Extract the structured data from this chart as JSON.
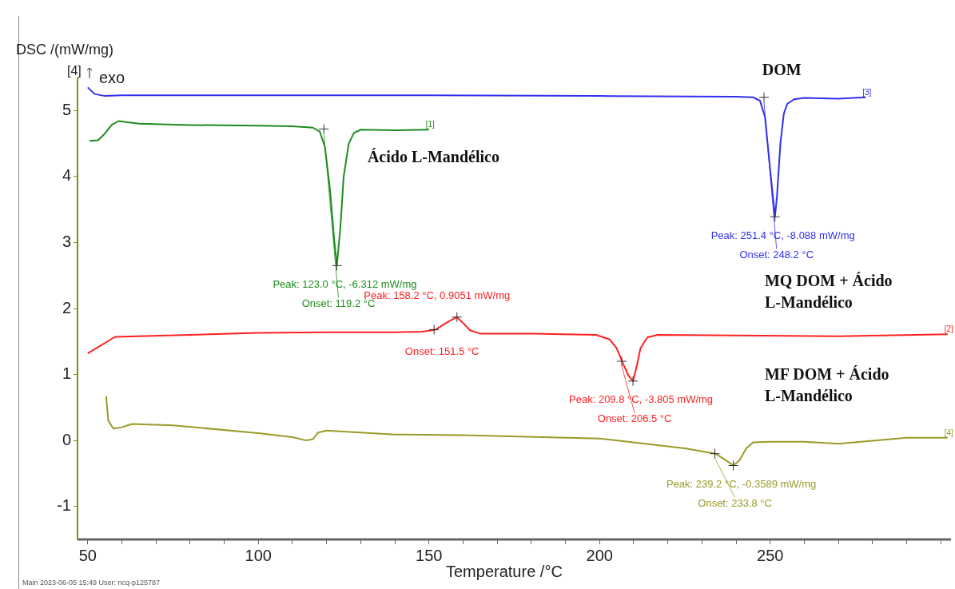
{
  "chart_data": {
    "type": "line",
    "xlabel": "Temperature /°C",
    "ylabel": "DSC /(mW/mg)",
    "xlim": [
      47,
      303
    ],
    "ylim": [
      -1.5,
      5.5
    ],
    "xticks": [
      50,
      {
        "value": 60,
        "label": null
      },
      {
        "value": 70,
        "label": null
      },
      {
        "value": 80,
        "label": null
      },
      {
        "value": 90,
        "label": null
      },
      100,
      {
        "value": 110,
        "label": null
      },
      {
        "value": 120,
        "label": null
      },
      {
        "value": 130,
        "label": null
      },
      {
        "value": 140,
        "label": null
      },
      150,
      {
        "value": 160,
        "label": null
      },
      {
        "value": 170,
        "label": null
      },
      {
        "value": 180,
        "label": null
      },
      {
        "value": 190,
        "label": null
      },
      200,
      {
        "value": 210,
        "label": null
      },
      {
        "value": 220,
        "label": null
      },
      {
        "value": 230,
        "label": null
      },
      {
        "value": 240,
        "label": null
      },
      250,
      {
        "value": 260,
        "label": null
      },
      {
        "value": 270,
        "label": null
      },
      {
        "value": 280,
        "label": null
      },
      {
        "value": 290,
        "label": null
      },
      {
        "value": 300,
        "label": null
      }
    ],
    "yticks": [
      -1,
      0,
      1,
      2,
      3,
      4,
      5
    ],
    "grid": false,
    "legend": false,
    "marker": "none",
    "line_style": "solid",
    "series": [
      {
        "name": "DOM",
        "color": "#3030f0",
        "x": [
          50,
          52,
          55,
          60,
          100,
          150,
          200,
          240,
          245,
          247,
          248.5,
          250,
          251,
          251.4,
          252,
          253,
          254,
          255,
          257,
          260,
          270,
          278
        ],
        "values": [
          5.35,
          5.25,
          5.22,
          5.23,
          5.23,
          5.23,
          5.22,
          5.21,
          5.2,
          5.15,
          4.9,
          4.1,
          3.6,
          3.39,
          3.7,
          4.5,
          4.95,
          5.1,
          5.17,
          5.19,
          5.18,
          5.2
        ]
      },
      {
        "name": "Ácido L-Mandélico",
        "color": "#1e8c1e",
        "x": [
          50.5,
          53,
          55,
          57,
          59,
          65,
          80,
          100,
          110,
          116,
          118,
          119.5,
          121,
          122.3,
          123,
          124,
          125,
          126.5,
          128,
          130,
          140,
          150
        ],
        "values": [
          4.54,
          4.55,
          4.65,
          4.78,
          4.84,
          4.8,
          4.78,
          4.77,
          4.76,
          4.74,
          4.68,
          4.45,
          3.8,
          3.0,
          2.65,
          3.2,
          4.0,
          4.5,
          4.66,
          4.71,
          4.7,
          4.71
        ]
      },
      {
        "name": "MQ DOM + Ácido L-Mandélico",
        "color": "#ff2020",
        "x": [
          50,
          58,
          80,
          100,
          120,
          140,
          148,
          152,
          155,
          158.2,
          160,
          162,
          165,
          180,
          199,
          203,
          205,
          207,
          208.5,
          209.8,
          211,
          212,
          214,
          217,
          240,
          270,
          302
        ],
        "values": [
          1.32,
          1.57,
          1.6,
          1.63,
          1.64,
          1.64,
          1.65,
          1.68,
          1.78,
          1.87,
          1.78,
          1.67,
          1.62,
          1.62,
          1.6,
          1.53,
          1.4,
          1.15,
          0.98,
          0.9,
          1.15,
          1.4,
          1.56,
          1.6,
          1.59,
          1.58,
          1.61
        ]
      },
      {
        "name": "MF DOM + Ácido L-Mandélico",
        "color": "#9a9a28",
        "x": [
          55.4,
          56,
          57.5,
          60,
          63,
          75,
          100,
          110,
          114,
          116,
          117.5,
          120,
          140,
          160,
          200,
          225,
          234,
          237,
          239.2,
          241,
          243,
          245,
          250,
          260,
          270,
          290,
          302
        ],
        "values": [
          0.67,
          0.3,
          0.18,
          0.2,
          0.25,
          0.23,
          0.11,
          0.05,
          0.0,
          0.02,
          0.12,
          0.15,
          0.09,
          0.08,
          0.03,
          -0.12,
          -0.2,
          -0.3,
          -0.38,
          -0.3,
          -0.12,
          -0.03,
          -0.02,
          -0.02,
          -0.05,
          0.04,
          0.04
        ]
      }
    ],
    "annotations": [
      {
        "text": "Peak: 251.4 °C, -8.088 mW/mg",
        "x": 251.4,
        "y": 3.39
      },
      {
        "text": "Onset: 248.2 °C",
        "x": 248.2,
        "y": 5.2
      },
      {
        "text": "Peak: 123.0 °C, -6.312 mW/mg",
        "x": 123,
        "y": 2.65
      },
      {
        "text": "Onset: 119.2 °C",
        "x": 119.2,
        "y": 4.72
      },
      {
        "text": "Peak: 158.2 °C, 0.9051 mW/mg",
        "x": 158.2,
        "y": 1.87
      },
      {
        "text": "Onset: 151.5 °C",
        "x": 151.5,
        "y": 1.68
      },
      {
        "text": "Peak: 209.8 °C, -3.805 mW/mg",
        "x": 209.8,
        "y": 0.9
      },
      {
        "text": "Onset: 206.5 °C",
        "x": 206.5,
        "y": 1.2
      },
      {
        "text": "Peak: 239.2 °C, -0.3589 mW/mg",
        "x": 239.2,
        "y": -0.38
      },
      {
        "text": "Onset: 233.8 °C",
        "x": 233.8,
        "y": -0.2
      },
      {
        "text": "[3]",
        "x": 278,
        "y": 5.2
      },
      {
        "text": "[1]",
        "x": 150,
        "y": 4.71
      },
      {
        "text": "[2]",
        "x": 302,
        "y": 1.61
      },
      {
        "text": "[4]",
        "x": 302,
        "y": 0.04
      },
      "[4]",
      "exo",
      "Main   2023-06-05 15:49   User: ncq-p125787"
    ]
  }
}
